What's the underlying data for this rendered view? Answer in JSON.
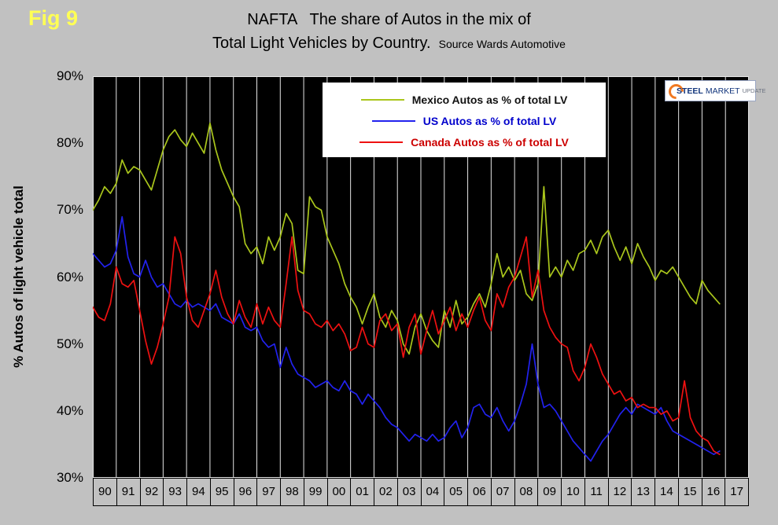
{
  "fig_label": "Fig 9",
  "title": {
    "line1": "NAFTA   The share of Autos in the mix of",
    "line2": "Total Light Vehicles by Country.",
    "source": "Source Wards Automotive"
  },
  "y_axis_title": "% Autos of light vehicle total",
  "page_bg": "#c1c1c1",
  "legend": {
    "items": [
      {
        "label": "Mexico Autos as % of total LV",
        "color": "#aac61c",
        "text_color": "#111111"
      },
      {
        "label": "US Autos as % of total LV",
        "color": "#2222ee",
        "text_color": "#0000cc"
      },
      {
        "label": "Canada Autos as % of total LV",
        "color": "#ee1111",
        "text_color": "#cc0000"
      }
    ]
  },
  "logo": {
    "word1": "STEEL",
    "word2": "MARKET",
    "word3": "UPDATE",
    "accent_color": "#f07820",
    "text_color": "#14377d"
  },
  "chart_data": {
    "type": "line",
    "title": "NAFTA   The share of Autos in the mix of Total Light Vehicles by Country.",
    "subtitle": "Source Wards Automotive",
    "ylabel": "% Autos of light vehicle total",
    "xlabel": "",
    "ylim": [
      30,
      90
    ],
    "x_axis_range": [
      1990,
      2018
    ],
    "x_start": 1990,
    "x_step": 0.25,
    "grid": "vertical white gridlines on black plot background",
    "legend_position": "top-center",
    "plot_bg": "#000000",
    "y_ticks": [
      90,
      80,
      70,
      60,
      50,
      40,
      30
    ],
    "y_tick_labels": [
      "90%",
      "80%",
      "70%",
      "60%",
      "50%",
      "40%",
      "30%"
    ],
    "x_tick_labels": [
      "90",
      "91",
      "92",
      "93",
      "94",
      "95",
      "96",
      "97",
      "98",
      "99",
      "00",
      "01",
      "02",
      "03",
      "04",
      "05",
      "06",
      "07",
      "08",
      "09",
      "10",
      "11",
      "12",
      "13",
      "14",
      "15",
      "16",
      "17"
    ],
    "series": [
      {
        "name": "Mexico Autos as % of total LV",
        "color": "#aac61c",
        "values": [
          70,
          71.5,
          73.5,
          72.5,
          74,
          77.5,
          75.5,
          76.5,
          76,
          74.5,
          73,
          76,
          79,
          81,
          82,
          80.5,
          79.5,
          81.5,
          80,
          78.5,
          83,
          79,
          76,
          74,
          72,
          70.5,
          65,
          63.5,
          64.5,
          62,
          66,
          64,
          66,
          69.5,
          68,
          61,
          60.5,
          72,
          70.5,
          70,
          66,
          64,
          62,
          59,
          57,
          55.5,
          53,
          55.5,
          57.5,
          54,
          52.5,
          55,
          53.5,
          50,
          48.5,
          52.5,
          54.5,
          52,
          50.5,
          49.5,
          55,
          52.5,
          56.5,
          53,
          54,
          56,
          57.5,
          55.5,
          59,
          63.5,
          60,
          61.5,
          59.5,
          61,
          57.5,
          56.5,
          59,
          73.5,
          60,
          61.5,
          60,
          62.5,
          61,
          63.5,
          64,
          65.5,
          63.5,
          66,
          67,
          64.5,
          62.5,
          64.5,
          62,
          65,
          63,
          61.5,
          59.5,
          61,
          60.5,
          61.5,
          60,
          58.5,
          57,
          56,
          59.5,
          58,
          57,
          56
        ]
      },
      {
        "name": "US Autos as % of total LV",
        "color": "#2222ee",
        "values": [
          63.5,
          62.5,
          61.5,
          62,
          64,
          69,
          63,
          60.5,
          60,
          62.5,
          60,
          58.5,
          59,
          57.5,
          56,
          55.5,
          56.5,
          55.5,
          56,
          55.5,
          55,
          56,
          54,
          53.5,
          53,
          54.5,
          52.5,
          52,
          52.5,
          50.5,
          49.5,
          50,
          46.5,
          49.5,
          47,
          45.5,
          45,
          44.5,
          43.5,
          44,
          44.5,
          43.5,
          43,
          44.5,
          43,
          42.5,
          41,
          42.5,
          41.5,
          40.5,
          39,
          38,
          37.5,
          36.5,
          35.5,
          36.5,
          36,
          35.5,
          36.5,
          35.5,
          36,
          37.5,
          38.5,
          36,
          37.5,
          40.5,
          41,
          39.5,
          39,
          40.5,
          38.5,
          37,
          38.5,
          41,
          44,
          50,
          44,
          40.5,
          41,
          40,
          38.5,
          37,
          35.5,
          34.5,
          33.5,
          32.5,
          34,
          35.5,
          36.5,
          38,
          39.5,
          40.5,
          39.5,
          41,
          40.5,
          40,
          39.5,
          40.5,
          38.5,
          37,
          36.5,
          36,
          35.5,
          35,
          34.5,
          34,
          33.5,
          34
        ]
      },
      {
        "name": "Canada Autos as % of total LV",
        "color": "#ee1111",
        "values": [
          55.5,
          54,
          53.5,
          56,
          61.5,
          59,
          58.5,
          59.5,
          55,
          50.5,
          47,
          49.5,
          53,
          57,
          66,
          63.5,
          57,
          53.5,
          52.5,
          55,
          57.5,
          61,
          57,
          54.5,
          53,
          56.5,
          54,
          52.5,
          56,
          53,
          55.5,
          53.5,
          52.5,
          59,
          66,
          58,
          55,
          54.5,
          53,
          52.5,
          53.5,
          52,
          53,
          51.5,
          49,
          49.5,
          52.5,
          50,
          49.5,
          53.5,
          54.5,
          52,
          53,
          48,
          52.5,
          54.5,
          48.5,
          52,
          55,
          51.5,
          53.5,
          55.5,
          52,
          54.5,
          52.5,
          55,
          57,
          53.5,
          52,
          57.5,
          55.5,
          58.5,
          60,
          63,
          66,
          57,
          61,
          55,
          52.5,
          51,
          50,
          49.5,
          46,
          44.5,
          46.5,
          50,
          48,
          45.5,
          44,
          42.5,
          43,
          41.5,
          42,
          40.5,
          41,
          40.5,
          40.5,
          39.5,
          40,
          38.5,
          39,
          44.5,
          39,
          37,
          36,
          35.5,
          34,
          33.5
        ]
      }
    ]
  }
}
